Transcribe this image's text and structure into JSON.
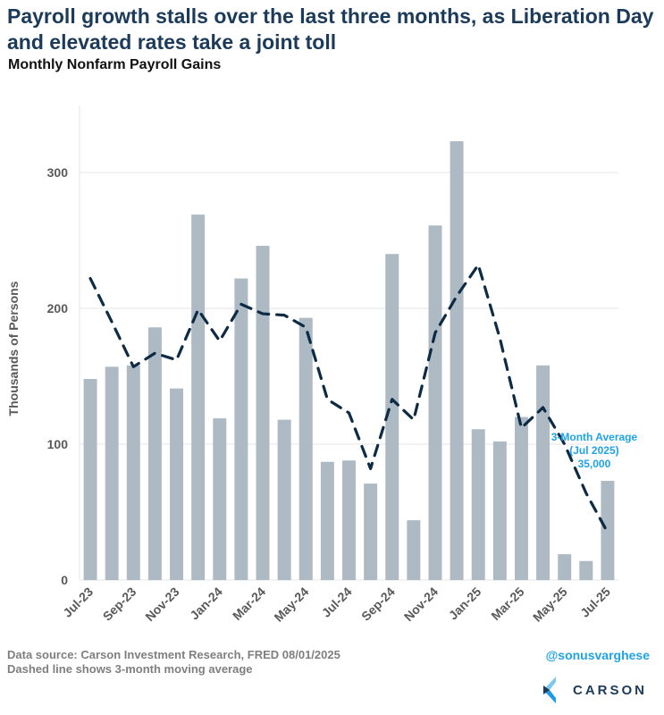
{
  "header": {
    "title": "Payroll growth stalls over the last three months, as Liberation Day and elevated rates take a joint toll",
    "subtitle": "Monthly Nonfarm Payroll Gains"
  },
  "footer": {
    "source": "Data source: Carson Investment Research, FRED   08/01/2025",
    "note": "Dashed line shows 3-month moving average",
    "handle": "@sonusvarghese",
    "logo_text": "CARSON"
  },
  "colors": {
    "bar": "#adbac4",
    "line": "#0d2b45",
    "annotation": "#1ea3e8",
    "title": "#1c3a5a",
    "grid": "#e6e6e6",
    "axis_text": "#595959"
  },
  "chart_data": {
    "type": "bar",
    "title": "Monthly Nonfarm Payroll Gains",
    "xlabel": "",
    "ylabel": "Thousands of Persons",
    "ylim": [
      0,
      350
    ],
    "yticks": [
      0,
      100,
      200,
      300
    ],
    "grid": true,
    "categories": [
      "Jul-23",
      "Aug-23",
      "Sep-23",
      "Oct-23",
      "Nov-23",
      "Dec-23",
      "Jan-24",
      "Feb-24",
      "Mar-24",
      "Apr-24",
      "May-24",
      "Jun-24",
      "Jul-24",
      "Aug-24",
      "Sep-24",
      "Oct-24",
      "Nov-24",
      "Dec-24",
      "Jan-25",
      "Feb-25",
      "Mar-25",
      "Apr-25",
      "May-25",
      "Jun-25",
      "Jul-25"
    ],
    "xtick_labels": [
      "Jul-23",
      "Sep-23",
      "Nov-23",
      "Jan-24",
      "Mar-24",
      "May-24",
      "Jul-24",
      "Sep-24",
      "Nov-24",
      "Jan-25",
      "Mar-25",
      "May-25",
      "Jul-25"
    ],
    "series": [
      {
        "name": "Monthly Nonfarm Payroll Gains",
        "type": "bar",
        "values": [
          148,
          157,
          158,
          186,
          141,
          269,
          119,
          222,
          246,
          118,
          193,
          87,
          88,
          71,
          240,
          44,
          261,
          323,
          111,
          102,
          120,
          158,
          19,
          14,
          73
        ]
      },
      {
        "name": "3-month moving average",
        "type": "line",
        "style": "dashed",
        "values": [
          222,
          190,
          157,
          167,
          162,
          199,
          176,
          203,
          196,
          195,
          186,
          133,
          123,
          82,
          133,
          118,
          182,
          209,
          232,
          178,
          112,
          127,
          100,
          64,
          35
        ]
      }
    ],
    "annotation": {
      "lines": [
        "3-Month Average",
        "(Jul 2025)",
        "35,000"
      ],
      "target": "Jul-25"
    }
  }
}
